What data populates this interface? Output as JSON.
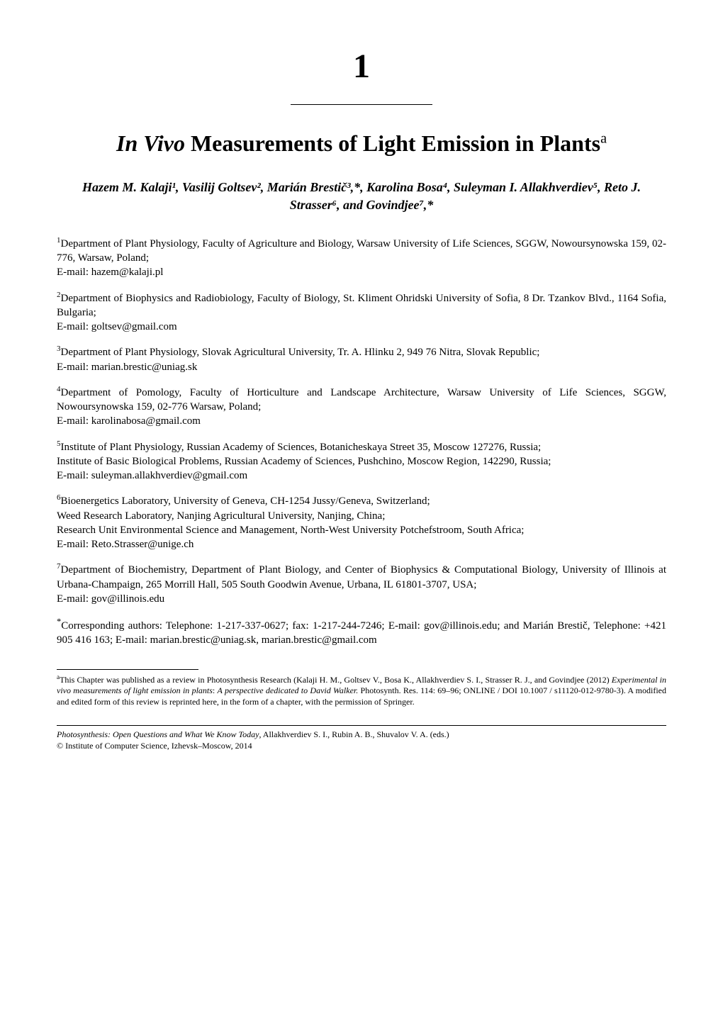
{
  "chapter": {
    "number": "1",
    "title_line1": "In Vivo",
    "title_line2": " Measurements of Light Emission in Plants",
    "title_sup": "a"
  },
  "authors_line": "Hazem M. Kalaji¹, Vasilij Goltsev², Marián Brestič³,*, Karolina Bosa⁴, Suleyman I. Allakhverdiev⁵, Reto J. Strasser⁶, and Govindjee⁷,*",
  "affiliations": [
    {
      "sup": "1",
      "text": "Department of Plant Physiology, Faculty of Agriculture and Biology, Warsaw University of Life Sciences, SGGW, Nowoursynowska 159, 02-776, Warsaw, Poland;",
      "email": "E-mail: hazem@kalaji.pl"
    },
    {
      "sup": "2",
      "text": "Department of Biophysics and Radiobiology, Faculty of Biology, St. Kliment Ohridski University of Sofia, 8 Dr. Tzankov Blvd., 1164 Sofia, Bulgaria;",
      "email": "E-mail: goltsev@gmail.com"
    },
    {
      "sup": "3",
      "text": "Department of Plant Physiology, Slovak Agricultural University, Tr. A. Hlinku 2, 949 76 Nitra, Slovak Republic;",
      "email": "E-mail: marian.brestic@uniag.sk"
    },
    {
      "sup": "4",
      "text": "Department of Pomology, Faculty of Horticulture and Landscape Architecture, Warsaw University of Life Sciences, SGGW, Nowoursynowska 159, 02-776 Warsaw, Poland;",
      "email": "E-mail: karolinabosa@gmail.com"
    },
    {
      "sup": "5",
      "text": "Institute of Plant Physiology, Russian Academy of Sciences, Botanicheskaya Street 35, Moscow 127276, Russia;",
      "extra": "Institute of Basic Biological Problems, Russian Academy of Sciences, Pushchino, Moscow Region, 142290, Russia;",
      "email": "E-mail: suleyman.allakhverdiev@gmail.com"
    },
    {
      "sup": "6",
      "text": "Bioenergetics Laboratory, University of Geneva, CH-1254 Jussy/Geneva, Switzerland;",
      "extra": "Weed Research Laboratory, Nanjing Agricultural University, Nanjing, China;",
      "extra2": "Research Unit Environmental Science and Management, North-West University Potchefstroom, South Africa;",
      "email": "E-mail: Reto.Strasser@unige.ch"
    },
    {
      "sup": "7",
      "text": "Department of Biochemistry, Department of Plant Biology, and Center of Biophysics & Computational Biology, University of Illinois at Urbana-Champaign, 265 Morrill Hall, 505 South Goodwin Avenue, Urbana, IL 61801-3707, USA;",
      "email": "E-mail: gov@illinois.edu"
    }
  ],
  "corresponding": {
    "sup": "*",
    "text": "Corresponding authors: Telephone: 1-217-337-0627; fax: 1-217-244-7246; E-mail: gov@illinois.edu; and Marián Brestič, Telephone: +421 905 416 163; E-mail: marian.brestic@uniag.sk, marian.brestic@gmail.com"
  },
  "footnote": {
    "sup": "a",
    "prefix": "This Chapter was published as a review in Photosynthesis Research (Kalaji H. M., Goltsev V., Bosa K., Allakhverdiev S. I., Strasser R. J., and Govindjee (2012) ",
    "italic1": "Experimental in vivo measurements of light emission in plants",
    "mid1": ": ",
    "italic2": "A perspective dedicated to David Walker.",
    "suffix": " Photosynth. Res. 114: 69–96; ONLINE / DOI 10.1007 / s11120-012-9780-3). A modified and edited form of this review is reprinted here, in the form of a chapter, with the permission of Springer."
  },
  "page_footer": {
    "italic": "Photosynthesis: Open Questions and What We Know Today",
    "rest": ", Allakhverdiev S. I., Rubin A. B., Shuvalov V. A. (eds.)",
    "copyright": "© Institute of Computer Science, Izhevsk–Moscow, 2014"
  },
  "colors": {
    "text": "#000000",
    "background": "#ffffff"
  },
  "typography": {
    "body_font": "Times New Roman",
    "chapter_number_fontsize": 48,
    "title_fontsize": 32,
    "authors_fontsize": 18,
    "affiliation_fontsize": 15,
    "footnote_fontsize": 12
  }
}
